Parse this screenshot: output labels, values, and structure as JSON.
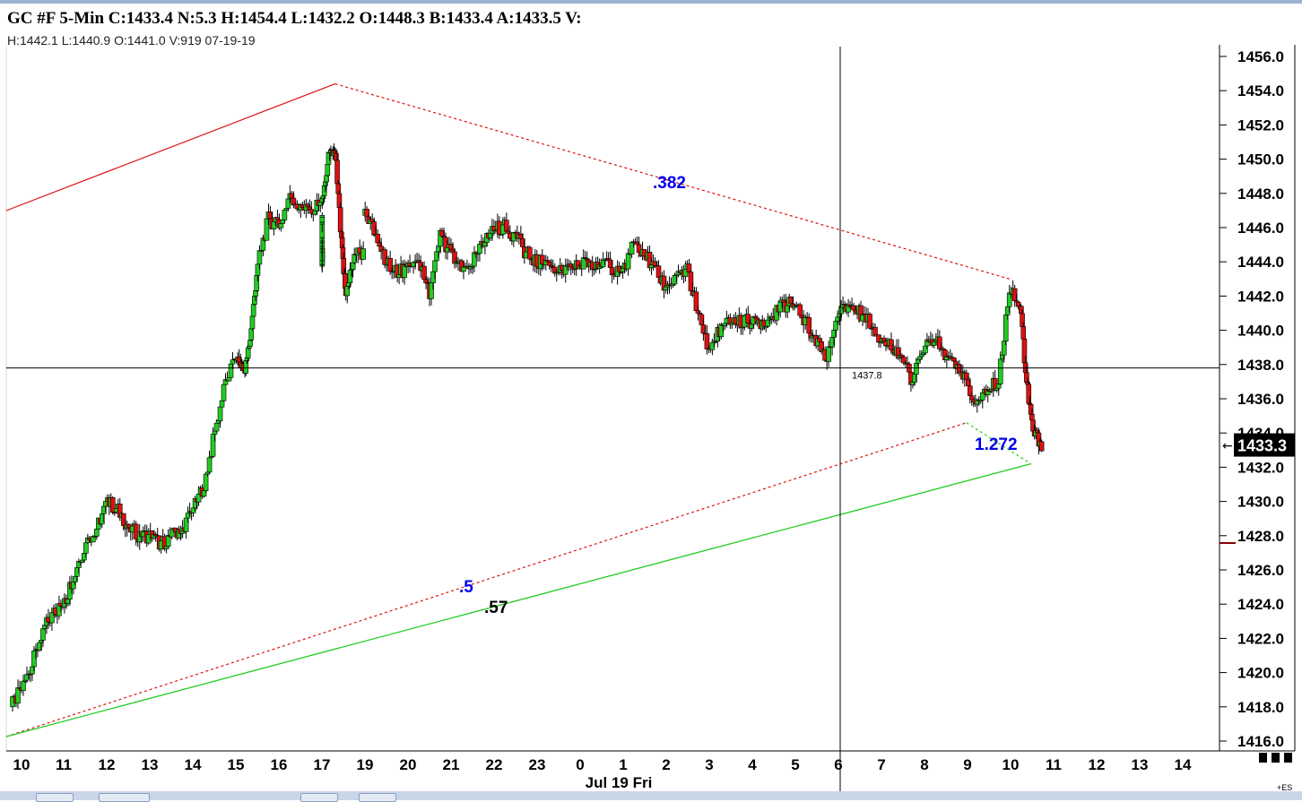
{
  "header": {
    "title": "GC #F 5-Min C:1433.4 N:5.3 H:1454.4 L:1432.2 O:1448.3 B:1433.4 A:1433.5 V:",
    "subline": "H:1442.1  L:1440.9  O:1441.0  V:919  07-19-19"
  },
  "footer": {
    "symbol_tag": "+ES"
  },
  "colors": {
    "up": "#22cc22",
    "down": "#dd1111",
    "fib_red": "#dd1111",
    "fib_green": "#22cc22",
    "label_blue": "#0000ee"
  },
  "chart_data": {
    "type": "candlestick",
    "title": "GC #F 5-Min",
    "ylim": [
      1415.5,
      1457
    ],
    "y_ticks": [
      "1456.0",
      "1454.0",
      "1452.0",
      "1450.0",
      "1448.0",
      "1446.0",
      "1444.0",
      "1442.0",
      "1440.0",
      "1438.0",
      "1436.0",
      "1434.0",
      "1432.0",
      "1430.0",
      "1428.0",
      "1426.0",
      "1424.0",
      "1422.0",
      "1420.0",
      "1418.0",
      "1416.0"
    ],
    "x_ticks": [
      "10",
      "11",
      "12",
      "13",
      "14",
      "15",
      "16",
      "17",
      "19",
      "20",
      "21",
      "22",
      "23",
      "0",
      "1",
      "2",
      "3",
      "4",
      "5",
      "6",
      "7",
      "8",
      "9",
      "10",
      "11",
      "12",
      "13",
      "14"
    ],
    "date_label": "Jul 19 Fri",
    "last_price": "1433.3",
    "crosshair": {
      "price": 1437.8,
      "label": "1437.8",
      "hour": "6"
    },
    "fib_labels": [
      ".382",
      "1.272",
      ".5",
      ".57"
    ],
    "pivots": [
      {
        "hour": 10.0,
        "price": 1416.3
      },
      {
        "hour": 17.3,
        "price": 1454.4
      },
      {
        "hour": 9.0,
        "price": 1434.6
      },
      {
        "hour": 10.0,
        "price": 1443.0
      },
      {
        "hour": 10.5,
        "price": 1432.2
      }
    ],
    "price_path": [
      [
        9.75,
        1418.0
      ],
      [
        10.0,
        1419.0
      ],
      [
        10.25,
        1420.5
      ],
      [
        10.5,
        1422.5
      ],
      [
        10.75,
        1423.5
      ],
      [
        11.0,
        1424.0
      ],
      [
        11.25,
        1426.0
      ],
      [
        11.5,
        1427.5
      ],
      [
        11.75,
        1428.5
      ],
      [
        12.0,
        1430.0
      ],
      [
        12.25,
        1429.5
      ],
      [
        12.5,
        1428.5
      ],
      [
        12.75,
        1428.0
      ],
      [
        13.0,
        1428.0
      ],
      [
        13.25,
        1427.5
      ],
      [
        13.5,
        1428.0
      ],
      [
        13.75,
        1428.5
      ],
      [
        14.0,
        1429.5
      ],
      [
        14.25,
        1431.0
      ],
      [
        14.5,
        1434.0
      ],
      [
        14.75,
        1437.0
      ],
      [
        15.0,
        1438.5
      ],
      [
        15.2,
        1437.5
      ],
      [
        15.35,
        1440.0
      ],
      [
        15.5,
        1444.0
      ],
      [
        15.75,
        1446.5
      ],
      [
        16.0,
        1446.0
      ],
      [
        16.25,
        1448.0
      ],
      [
        16.5,
        1447.0
      ],
      [
        16.75,
        1447.0
      ],
      [
        17.0,
        1447.5
      ],
      [
        17.15,
        1450.0
      ],
      [
        17.3,
        1450.5
      ],
      [
        17.45,
        1445.0
      ],
      [
        17.55,
        1442.0
      ],
      [
        17.75,
        1444.5
      ],
      [
        18.0,
        1444.5
      ],
      [
        18.25,
        1444.0
      ],
      [
        18.5,
        1444.5
      ],
      [
        18.75,
        1445.5
      ],
      [
        19.0,
        1447.0
      ],
      [
        19.25,
        1445.5
      ],
      [
        19.5,
        1444.0
      ],
      [
        19.75,
        1443.5
      ],
      [
        20.0,
        1443.5
      ],
      [
        20.25,
        1444.0
      ],
      [
        20.5,
        1442.0
      ],
      [
        20.75,
        1445.5
      ],
      [
        21.0,
        1444.5
      ],
      [
        21.25,
        1443.5
      ],
      [
        21.5,
        1444.0
      ],
      [
        21.75,
        1445.0
      ],
      [
        22.0,
        1446.0
      ],
      [
        22.25,
        1446.0
      ],
      [
        22.5,
        1445.5
      ],
      [
        22.75,
        1444.5
      ],
      [
        23.0,
        1444.0
      ],
      [
        23.25,
        1444.0
      ],
      [
        23.5,
        1443.5
      ],
      [
        23.75,
        1443.5
      ],
      [
        24.0,
        1443.8
      ],
      [
        24.25,
        1444.0
      ],
      [
        24.5,
        1444.0
      ],
      [
        24.75,
        1443.5
      ],
      [
        25.0,
        1443.5
      ],
      [
        25.25,
        1445.0
      ],
      [
        25.5,
        1444.5
      ],
      [
        25.75,
        1443.5
      ],
      [
        26.0,
        1442.5
      ],
      [
        26.25,
        1443.0
      ],
      [
        26.5,
        1443.5
      ],
      [
        26.75,
        1441.0
      ],
      [
        27.0,
        1438.8
      ],
      [
        27.25,
        1440.0
      ],
      [
        27.5,
        1440.5
      ],
      [
        27.75,
        1440.5
      ],
      [
        28.0,
        1440.5
      ],
      [
        28.25,
        1440.5
      ],
      [
        28.5,
        1440.8
      ],
      [
        28.75,
        1441.5
      ],
      [
        29.0,
        1441.5
      ],
      [
        29.25,
        1440.5
      ],
      [
        29.5,
        1439.5
      ],
      [
        29.75,
        1438.5
      ],
      [
        30.0,
        1441.0
      ],
      [
        30.25,
        1441.5
      ],
      [
        30.5,
        1441.0
      ],
      [
        30.75,
        1440.5
      ],
      [
        31.0,
        1439.5
      ],
      [
        31.25,
        1439.0
      ],
      [
        31.5,
        1438.5
      ],
      [
        31.75,
        1437.0
      ],
      [
        32.0,
        1439.0
      ],
      [
        32.25,
        1439.5
      ],
      [
        32.5,
        1438.5
      ],
      [
        32.75,
        1438.0
      ],
      [
        33.0,
        1437.0
      ],
      [
        33.25,
        1435.5
      ],
      [
        33.5,
        1436.5
      ],
      [
        33.75,
        1437.0
      ],
      [
        34.0,
        1442.5
      ],
      [
        34.25,
        1441.5
      ],
      [
        34.4,
        1437.0
      ],
      [
        34.55,
        1434.0
      ],
      [
        34.75,
        1433.4
      ]
    ]
  }
}
